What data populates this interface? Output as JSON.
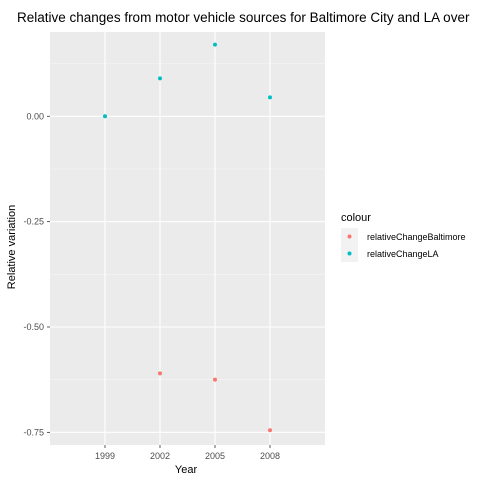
{
  "chart_data": {
    "type": "scatter",
    "title": "Relative changes from motor vehicle sources for Baltimore City and LA over",
    "xlabel": "Year",
    "ylabel": "Relative variation",
    "categories": [
      "1999",
      "2002",
      "2005",
      "2008"
    ],
    "y_ticks": [
      "0.00",
      "-0.25",
      "-0.50",
      "-0.75"
    ],
    "y_tick_values": [
      0,
      -0.25,
      -0.5,
      -0.75
    ],
    "ylim": [
      -0.78,
      0.2
    ],
    "grid": true,
    "legend_title": "colour",
    "legend_position": "right",
    "series": [
      {
        "name": "relativeChangeBaltimore",
        "color": "#F8766D",
        "x": [
          "2002",
          "2005",
          "2008"
        ],
        "values": [
          -0.61,
          -0.625,
          -0.745
        ]
      },
      {
        "name": "relativeChangeLA",
        "color": "#00BFC4",
        "x": [
          "1999",
          "2002",
          "2005",
          "2008"
        ],
        "values": [
          0.0,
          0.09,
          0.17,
          0.045
        ]
      }
    ]
  }
}
